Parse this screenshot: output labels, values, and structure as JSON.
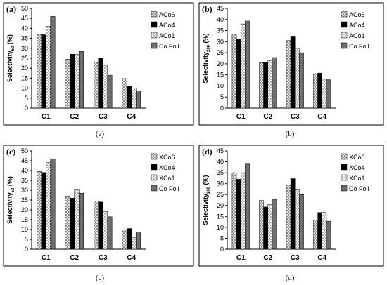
{
  "patterns": [
    {
      "id": "crosshatch",
      "fill": "#ffffff",
      "stroke": "#777777"
    },
    {
      "id": "black",
      "fill": "#000000",
      "stroke": "#000000"
    },
    {
      "id": "dots",
      "fill": "#ffffff",
      "stroke": "#555555"
    },
    {
      "id": "dense",
      "fill": "#777777",
      "stroke": "#555555"
    }
  ],
  "chart_data": [
    {
      "type": "bar",
      "panel_label": "(a)",
      "caption": "(a)",
      "ylabel_main": "Selectivity",
      "ylabel_sub": "50",
      "ylabel_unit": " (%)",
      "ylim": [
        0,
        50
      ],
      "yticks": [
        0,
        5,
        10,
        15,
        20,
        25,
        30,
        35,
        40,
        45,
        50
      ],
      "grid": false,
      "legend_position": "top-right",
      "categories": [
        "C1",
        "C2",
        "C3",
        "C4"
      ],
      "series": [
        {
          "name": "ACo6",
          "pattern": "crosshatch",
          "values": [
            37,
            24.5,
            23.2,
            14.8
          ]
        },
        {
          "name": "ACo4",
          "pattern": "black",
          "values": [
            36.8,
            27,
            25,
            10.8
          ]
        },
        {
          "name": "ACo1",
          "pattern": "dots",
          "values": [
            41,
            27,
            21.5,
            10
          ]
        },
        {
          "name": "Co Foil",
          "pattern": "dense",
          "values": [
            46,
            28.5,
            16.5,
            8.7
          ]
        }
      ]
    },
    {
      "type": "bar",
      "panel_label": "(b)",
      "caption": "(b)",
      "ylabel_main": "Selectivity",
      "ylabel_sub": "200",
      "ylabel_unit": " (%)",
      "ylim": [
        0,
        45
      ],
      "yticks": [
        0,
        5,
        10,
        15,
        20,
        25,
        30,
        35,
        40,
        45
      ],
      "grid": false,
      "legend_position": "top-right",
      "categories": [
        "C1",
        "C2",
        "C3",
        "C4"
      ],
      "series": [
        {
          "name": "ACo6",
          "pattern": "crosshatch",
          "values": [
            33.5,
            20.5,
            30.5,
            15.5
          ]
        },
        {
          "name": "ACo4",
          "pattern": "black",
          "values": [
            31,
            20.5,
            32.5,
            15.8
          ]
        },
        {
          "name": "ACo1",
          "pattern": "dots",
          "values": [
            38,
            21.5,
            27,
            13
          ]
        },
        {
          "name": "Co Foil",
          "pattern": "dense",
          "values": [
            39.3,
            22.8,
            25,
            12.8
          ]
        }
      ]
    },
    {
      "type": "bar",
      "panel_label": "(c)",
      "caption": "(c)",
      "ylabel_main": "Selectivity",
      "ylabel_sub": "50",
      "ylabel_unit": " (%)",
      "ylim": [
        0,
        50
      ],
      "yticks": [
        0,
        5,
        10,
        15,
        20,
        25,
        30,
        35,
        40,
        45,
        50
      ],
      "grid": false,
      "legend_position": "top-right",
      "categories": [
        "C1",
        "C2",
        "C3",
        "C4"
      ],
      "series": [
        {
          "name": "XCo6",
          "pattern": "crosshatch",
          "values": [
            39.5,
            27,
            24.5,
            9.3
          ]
        },
        {
          "name": "XCo4",
          "pattern": "black",
          "values": [
            39,
            26,
            24,
            10.5
          ]
        },
        {
          "name": "XCo1",
          "pattern": "dots",
          "values": [
            44,
            30.5,
            19.2,
            6
          ]
        },
        {
          "name": "Co Foil",
          "pattern": "dense",
          "values": [
            46,
            28.5,
            16.5,
            8.7
          ]
        }
      ]
    },
    {
      "type": "bar",
      "panel_label": "(d)",
      "caption": "(d)",
      "ylabel_main": "Selectivity",
      "ylabel_sub": "200",
      "ylabel_unit": " (%)",
      "ylim": [
        0,
        45
      ],
      "yticks": [
        0,
        5,
        10,
        15,
        20,
        25,
        30,
        35,
        40,
        45
      ],
      "grid": false,
      "legend_position": "top-right",
      "categories": [
        "C1",
        "C2",
        "C3",
        "C4"
      ],
      "series": [
        {
          "name": "XCo6",
          "pattern": "crosshatch",
          "values": [
            35,
            22.3,
            29.5,
            13.3
          ]
        },
        {
          "name": "XCo4",
          "pattern": "black",
          "values": [
            32,
            19.3,
            32.3,
            16.8
          ]
        },
        {
          "name": "XCo1",
          "pattern": "dots",
          "values": [
            35,
            20.5,
            27.5,
            16.8
          ]
        },
        {
          "name": "Co Foil",
          "pattern": "dense",
          "values": [
            39.3,
            22.8,
            25,
            12.8
          ]
        }
      ]
    }
  ]
}
